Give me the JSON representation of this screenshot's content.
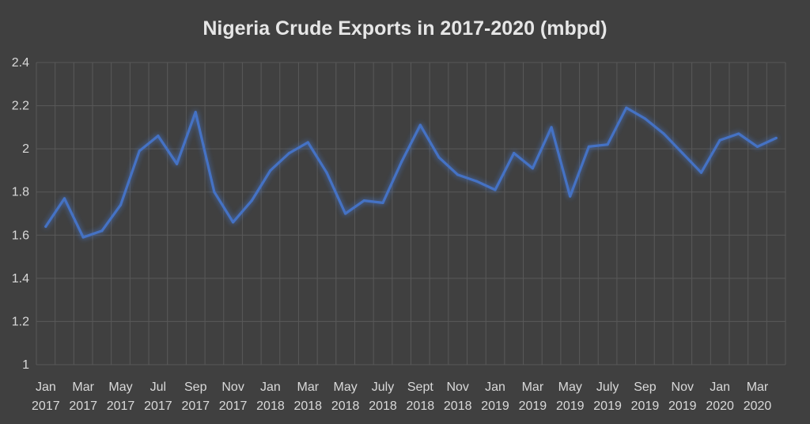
{
  "chart_data": {
    "type": "line",
    "title": "Nigeria Crude Exports in 2017-2020 (mbpd)",
    "xlabel": "",
    "ylabel": "",
    "ylim": [
      1,
      2.4
    ],
    "yticks": [
      "1",
      "1.2",
      "1.4",
      "1.6",
      "1.8",
      "2",
      "2.2",
      "2.4"
    ],
    "grid": true,
    "legend": "none",
    "line_color": "#4472c4",
    "categories": [
      "Jan 2017",
      "Feb 2017",
      "Mar 2017",
      "Apr 2017",
      "May 2017",
      "Jun 2017",
      "Jul 2017",
      "Aug 2017",
      "Sep 2017",
      "Oct 2017",
      "Nov 2017",
      "Dec 2017",
      "Jan 2018",
      "Feb 2018",
      "Mar 2018",
      "Apr 2018",
      "May 2018",
      "Jun 2018",
      "July 2018",
      "Aug 2018",
      "Sept 2018",
      "Oct 2018",
      "Nov 2018",
      "Dec 2018",
      "Jan 2019",
      "Feb 2019",
      "Mar 2019",
      "Apr 2019",
      "May 2019",
      "Jun 2019",
      "July 2019",
      "Aug 2019",
      "Sep 2019",
      "Oct 2019",
      "Nov 2019",
      "Dec 2019",
      "Jan 2020",
      "Feb 2020",
      "Mar 2020",
      "Apr 2020"
    ],
    "tick_labels": [
      {
        "index": 0,
        "month": "Jan",
        "year": "2017"
      },
      {
        "index": 2,
        "month": "Mar",
        "year": "2017"
      },
      {
        "index": 4,
        "month": "May",
        "year": "2017"
      },
      {
        "index": 6,
        "month": "Jul",
        "year": "2017"
      },
      {
        "index": 8,
        "month": "Sep",
        "year": "2017"
      },
      {
        "index": 10,
        "month": "Nov",
        "year": "2017"
      },
      {
        "index": 12,
        "month": "Jan",
        "year": "2018"
      },
      {
        "index": 14,
        "month": "Mar",
        "year": "2018"
      },
      {
        "index": 16,
        "month": "May",
        "year": "2018"
      },
      {
        "index": 18,
        "month": "July",
        "year": "2018"
      },
      {
        "index": 20,
        "month": "Sept",
        "year": "2018"
      },
      {
        "index": 22,
        "month": "Nov",
        "year": "2018"
      },
      {
        "index": 24,
        "month": "Jan",
        "year": "2019"
      },
      {
        "index": 26,
        "month": "Mar",
        "year": "2019"
      },
      {
        "index": 28,
        "month": "May",
        "year": "2019"
      },
      {
        "index": 30,
        "month": "July",
        "year": "2019"
      },
      {
        "index": 32,
        "month": "Sep",
        "year": "2019"
      },
      {
        "index": 34,
        "month": "Nov",
        "year": "2019"
      },
      {
        "index": 36,
        "month": "Jan",
        "year": "2020"
      },
      {
        "index": 38,
        "month": "Mar",
        "year": "2020"
      }
    ],
    "values": [
      1.64,
      1.77,
      1.59,
      1.62,
      1.74,
      1.99,
      2.06,
      1.93,
      2.17,
      1.8,
      1.66,
      1.76,
      1.9,
      1.98,
      2.03,
      1.89,
      1.7,
      1.76,
      1.75,
      1.94,
      2.11,
      1.96,
      1.88,
      1.85,
      1.81,
      1.98,
      1.91,
      2.1,
      1.78,
      2.01,
      2.02,
      2.19,
      2.14,
      2.07,
      1.98,
      1.89,
      2.04,
      2.07,
      2.01,
      2.05
    ]
  }
}
